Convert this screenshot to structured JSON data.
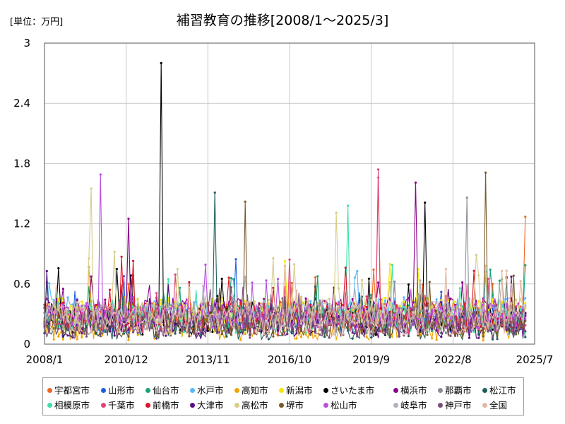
{
  "chart_data": {
    "type": "line",
    "title": "補習教育の推移[2008/1～2025/3]",
    "unit_label": "[単位：万円]",
    "xlabel": "",
    "ylabel": "",
    "x_range": [
      "2008/1",
      "2025/7"
    ],
    "x_ticks": [
      "2008/1",
      "2010/12",
      "2013/11",
      "2016/10",
      "2019/9",
      "2022/8",
      "2025/7"
    ],
    "y_ticks": [
      "0",
      "0.6",
      "1.2",
      "1.8",
      "2.4",
      "3"
    ],
    "ylim": [
      0,
      3
    ],
    "grid": true,
    "series": [
      {
        "name": "宇都宮市",
        "color": "#f26522"
      },
      {
        "name": "山形市",
        "color": "#1f5fe0"
      },
      {
        "name": "仙台市",
        "color": "#17a673"
      },
      {
        "name": "水戸市",
        "color": "#5bb8f5"
      },
      {
        "name": "高知市",
        "color": "#f0a500"
      },
      {
        "name": "新潟市",
        "color": "#f5e600"
      },
      {
        "name": "さいたま市",
        "color": "#000000"
      },
      {
        "name": "横浜市",
        "color": "#8b008b"
      },
      {
        "name": "那覇市",
        "color": "#8a8f96"
      },
      {
        "name": "松江市",
        "color": "#1f5f5b"
      },
      {
        "name": "相模原市",
        "color": "#3fe0a8"
      },
      {
        "name": "千葉市",
        "color": "#e0457b"
      },
      {
        "name": "前橋市",
        "color": "#e0102a"
      },
      {
        "name": "大津市",
        "color": "#5a0f82"
      },
      {
        "name": "高松市",
        "color": "#d6cd8a"
      },
      {
        "name": "堺市",
        "color": "#7a5a2b"
      },
      {
        "name": "松山市",
        "color": "#b84fe0"
      },
      {
        "name": "岐阜市",
        "color": "#b0b0b8"
      },
      {
        "name": "神戸市",
        "color": "#7a4f7a"
      },
      {
        "name": "全国",
        "color": "#e3b8a3"
      }
    ],
    "peaks": [
      {
        "series": "さいたま市",
        "x": "2012/3",
        "y": 2.8
      },
      {
        "series": "松江市",
        "x": "2014/2",
        "y": 1.51
      },
      {
        "series": "横浜市",
        "x": "2011/1",
        "y": 1.25
      },
      {
        "series": "松山市",
        "x": "2010/1",
        "y": 1.69
      },
      {
        "series": "高松市",
        "x": "2009/9",
        "y": 1.55
      },
      {
        "series": "堺市",
        "x": "2023/10",
        "y": 1.71
      },
      {
        "series": "宇都宮市",
        "x": "2019/12",
        "y": 1.66
      },
      {
        "series": "千葉市",
        "x": "2019/12",
        "y": 1.74
      },
      {
        "series": "横浜市",
        "x": "2021/4",
        "y": 1.61
      },
      {
        "series": "那覇市",
        "x": "2023/2",
        "y": 1.46
      },
      {
        "series": "さいたま市",
        "x": "2021/8",
        "y": 1.41
      },
      {
        "series": "堺市",
        "x": "2015/3",
        "y": 1.42
      },
      {
        "series": "相模原市",
        "x": "2018/11",
        "y": 1.38
      },
      {
        "series": "高松市",
        "x": "2018/6",
        "y": 1.31
      },
      {
        "series": "宇都宮市",
        "x": "2025/3",
        "y": 1.27
      }
    ]
  }
}
